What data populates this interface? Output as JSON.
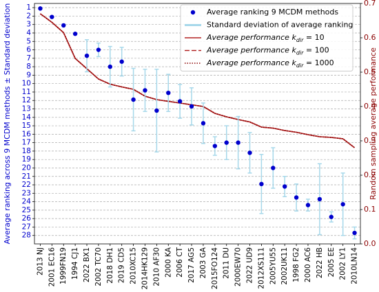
{
  "chart_data": {
    "type": "combo",
    "categories": [
      "2013 NJ",
      "2001 EC16",
      "1999FN19",
      "1994 CJ1",
      "2022 BX1",
      "2002 TC70",
      "2018 DH1",
      "2019 CD5",
      "2010XC15",
      "2014HK129",
      "2010 AF30",
      "2000 KA",
      "2006 CT",
      "2017 AG5",
      "2003 GA",
      "2015FO124",
      "2011 DU",
      "2000EW70",
      "2022 UD9",
      "2012XS111",
      "2005YU55",
      "2002UK11",
      "1998 FG2",
      "2000 AC6",
      "2022 HB",
      "2005 EE",
      "2002 LY1",
      "2010LN14"
    ],
    "ylabel": "Average ranking across 9 MCDM methods ± Standard deviation",
    "y2label": "Random sampling average performance",
    "ylim": [
      0.5,
      29
    ],
    "y_inverted": true,
    "yticks": [
      1,
      2,
      3,
      4,
      5,
      6,
      7,
      8,
      9,
      10,
      11,
      12,
      13,
      14,
      15,
      16,
      17,
      18,
      19,
      20,
      21,
      22,
      23,
      24,
      25,
      26,
      27,
      28
    ],
    "y2lim": [
      0,
      0.7
    ],
    "y2ticks": [
      {
        "value": 0,
        "label": "0.0"
      },
      0.1,
      0.2,
      0.3,
      0.4,
      0.5,
      0.6,
      0.7
    ],
    "grid": true,
    "legend": "upper right",
    "series": [
      {
        "name": "Average ranking 9 MCDM methods",
        "type": "errorbar",
        "color": "#0000cd",
        "values": [
          1.1,
          2.1,
          3.1,
          4.1,
          6.7,
          6.0,
          8.0,
          7.4,
          11.9,
          10.8,
          13.2,
          11.1,
          12.1,
          12.7,
          14.7,
          17.4,
          17.0,
          17.0,
          18.2,
          21.9,
          20.0,
          22.2,
          23.5,
          24.4,
          23.7,
          25.8,
          24.3,
          27.7
        ],
        "errors": [
          0,
          0,
          0,
          0,
          1.9,
          0.8,
          2.4,
          1.7,
          3.7,
          2.5,
          4.9,
          2.2,
          2.0,
          2.2,
          2.4,
          1.1,
          2.0,
          3.1,
          2.4,
          3.5,
          2.4,
          1.2,
          1.6,
          0.7,
          4.2,
          0.6,
          3.7,
          0.7
        ],
        "error_name": "Standard deviation of average ranking",
        "error_color": "#a6d8ea"
      },
      {
        "name": "Average performance kdir = 10",
        "type": "line",
        "axis": "y2",
        "color": "#b22222",
        "linestyle": "solid",
        "values": [
          0.67,
          0.645,
          0.615,
          0.54,
          0.51,
          0.48,
          0.465,
          0.457,
          0.45,
          0.43,
          0.42,
          0.415,
          0.41,
          0.405,
          0.4,
          0.38,
          0.37,
          0.362,
          0.355,
          0.34,
          0.337,
          0.33,
          0.325,
          0.318,
          0.312,
          0.31,
          0.306,
          0.28
        ]
      },
      {
        "name": "Average performance kdir = 100",
        "type": "line",
        "axis": "y2",
        "color": "#b22222",
        "linestyle": "dashed",
        "values": [
          0.67,
          0.645,
          0.615,
          0.54,
          0.51,
          0.48,
          0.465,
          0.457,
          0.45,
          0.43,
          0.42,
          0.415,
          0.41,
          0.405,
          0.4,
          0.38,
          0.37,
          0.362,
          0.355,
          0.34,
          0.337,
          0.33,
          0.325,
          0.318,
          0.312,
          0.31,
          0.306,
          0.28
        ]
      },
      {
        "name": "Average performance kdir = 1000",
        "type": "line",
        "axis": "y2",
        "color": "#8b0000",
        "linestyle": "dotted",
        "values": [
          0.67,
          0.645,
          0.615,
          0.54,
          0.51,
          0.48,
          0.465,
          0.457,
          0.45,
          0.43,
          0.42,
          0.415,
          0.41,
          0.405,
          0.4,
          0.38,
          0.37,
          0.362,
          0.355,
          0.34,
          0.337,
          0.33,
          0.325,
          0.318,
          0.312,
          0.31,
          0.306,
          0.28
        ]
      }
    ]
  }
}
